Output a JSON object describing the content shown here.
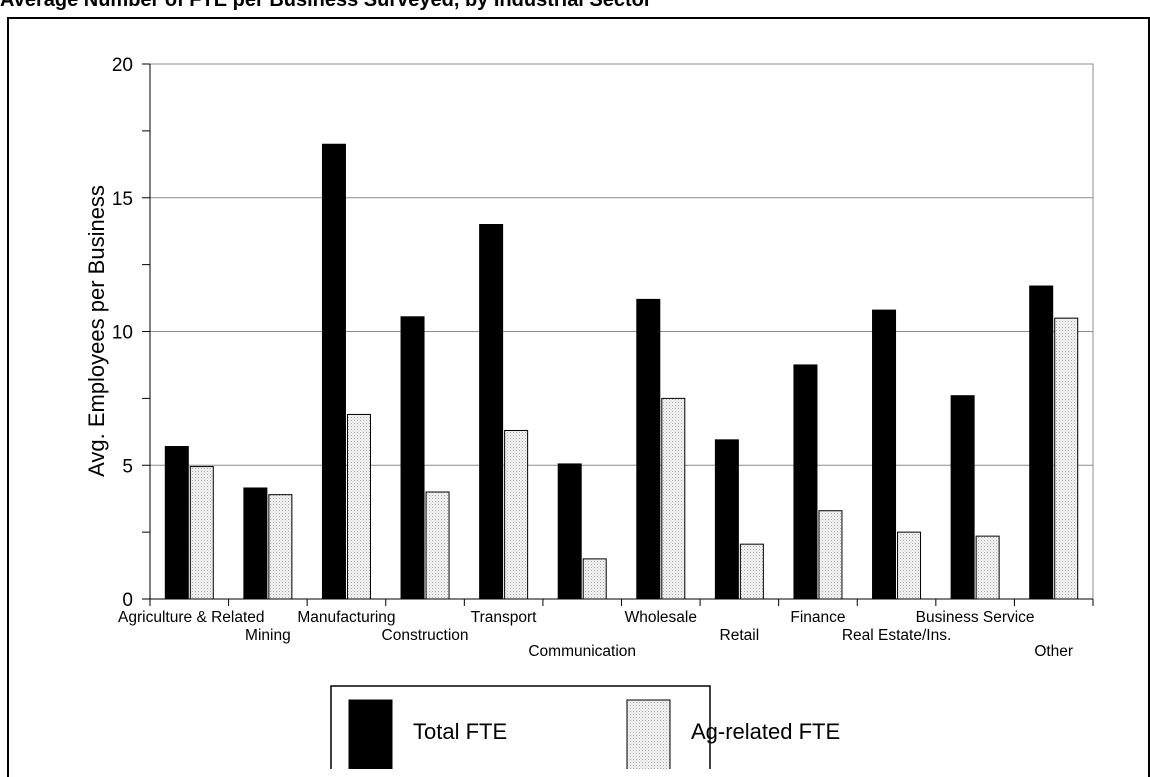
{
  "chart_data": {
    "type": "bar",
    "title": "Average Number of FTE per Business Surveyed, by Industrial Sector",
    "xlabel": "",
    "ylabel": "Avg. Employees per Business",
    "ylim": [
      0,
      20
    ],
    "yticks": [
      0,
      5,
      10,
      15,
      20
    ],
    "grid": true,
    "legend_position": "bottom",
    "categories": [
      "Agriculture & Related",
      "Mining",
      "Manufacturing",
      "Construction",
      "Transport",
      "Communication",
      "Wholesale",
      "Retail",
      "Finance",
      "Real Estate/Ins.",
      "Business Service",
      "Other"
    ],
    "series": [
      {
        "name": "Total FTE",
        "color": "#000000",
        "values": [
          5.7,
          4.15,
          17.0,
          10.55,
          14.0,
          5.05,
          11.2,
          5.95,
          8.75,
          10.8,
          7.6,
          11.7
        ]
      },
      {
        "name": "Ag-related FTE",
        "color": "#e8e8e8",
        "values": [
          4.95,
          3.9,
          6.9,
          4.0,
          6.3,
          1.5,
          7.5,
          2.05,
          3.3,
          2.5,
          2.35,
          10.5
        ]
      }
    ]
  }
}
